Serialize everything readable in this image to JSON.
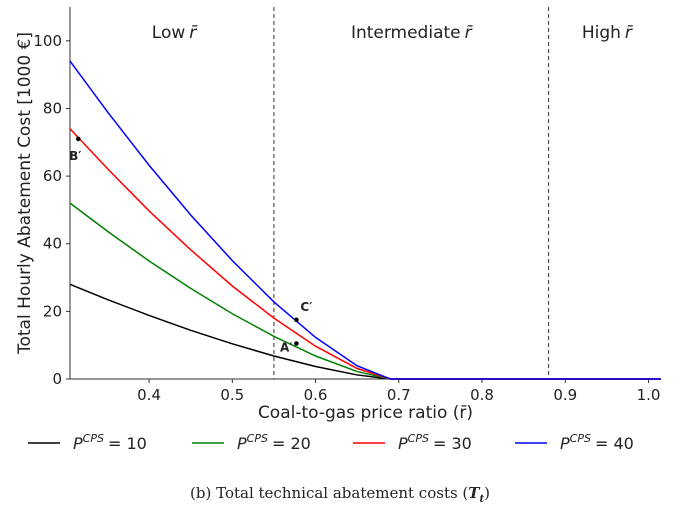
{
  "chart_data": {
    "type": "line",
    "x": [
      0.305,
      0.35,
      0.4,
      0.45,
      0.5,
      0.55,
      0.6,
      0.65,
      0.69,
      0.7,
      0.8,
      0.9,
      1.0,
      1.015
    ],
    "series": [
      {
        "name": "P",
        "superscript": "CPS",
        "suffix": "= 10",
        "color": "#000000",
        "values": [
          28,
          23.5,
          18.8,
          14.4,
          10.4,
          6.8,
          3.7,
          1.2,
          0,
          0,
          0,
          0,
          0,
          0
        ]
      },
      {
        "name": "P",
        "superscript": "CPS",
        "suffix": "= 20",
        "color": "#008000",
        "values": [
          52,
          43.7,
          34.9,
          26.8,
          19.3,
          12.6,
          6.8,
          2.2,
          0,
          0,
          0,
          0,
          0,
          0
        ]
      },
      {
        "name": "P",
        "superscript": "CPS",
        "suffix": "= 30",
        "color": "#ff0000",
        "values": [
          74,
          62.2,
          49.7,
          38.2,
          27.5,
          18.0,
          9.7,
          3.1,
          0,
          0,
          0,
          0,
          0,
          0
        ]
      },
      {
        "name": "P",
        "superscript": "CPS",
        "suffix": "= 40",
        "color": "#0000ff",
        "values": [
          94,
          79,
          63.2,
          48.5,
          35,
          22.8,
          12.3,
          3.9,
          0,
          0,
          0,
          0,
          0,
          0
        ]
      }
    ],
    "xlim": [
      0.305,
      1.015
    ],
    "ylim": [
      0,
      110
    ],
    "xticks": [
      0.4,
      0.5,
      0.6,
      0.7,
      0.8,
      0.9,
      {
        "value": 1.0,
        "label": "1.0"
      }
    ],
    "yticks": [
      0,
      20,
      40,
      60,
      80,
      100
    ],
    "xlabel": "Coal-to-gas price ratio (r̄)",
    "ylabel": "Total Hourly Abatement Cost [1000 €]",
    "vlines": [
      0.55,
      0.88
    ],
    "regions": [
      {
        "text": "Low",
        "symbol": "r̄",
        "x": 0.43
      },
      {
        "text": "Intermediate",
        "symbol": "r̄",
        "x": 0.715
      },
      {
        "text": "High",
        "symbol": "r̄",
        "x": 0.95
      }
    ],
    "points": [
      {
        "label": "B′",
        "x": 0.315,
        "y": 71
      },
      {
        "label": "C′",
        "x": 0.577,
        "y": 17.5
      },
      {
        "label": "A′",
        "x": 0.577,
        "y": 10.5
      }
    ],
    "caption": {
      "prefix": "(b) Total technical abatement costs (",
      "symbol": "T",
      "subscript": "t",
      "suffix": ")"
    }
  }
}
